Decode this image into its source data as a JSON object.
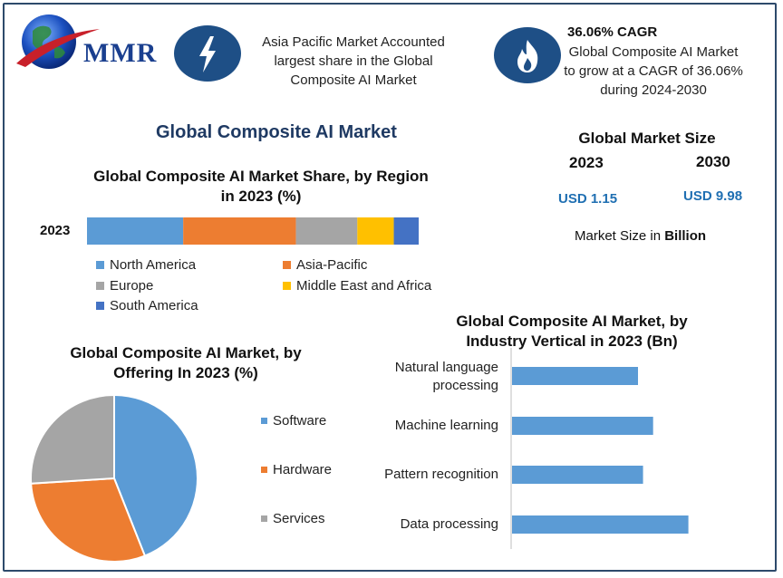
{
  "logo": {
    "text": "MMR"
  },
  "header": {
    "asia_text": "Asia Pacific Market Accounted largest share in the Global Composite AI Market",
    "cagr_title": "36.06% CAGR",
    "cagr_text": "Global Composite AI Market to grow at a CAGR of 36.06% during 2024-2030"
  },
  "main_title": "Global Composite AI Market",
  "market_size": {
    "title": "Global Market Size",
    "year_1": "2023",
    "year_2": "2030",
    "value_1": "USD 1.15",
    "value_2": "USD 9.98",
    "unit_prefix": "Market Size in ",
    "unit_bold": "Billion"
  },
  "colors": {
    "north_america": "#5b9bd5",
    "asia_pacific": "#ed7d31",
    "europe": "#a5a5a5",
    "middle_east_africa": "#ffc000",
    "south_america": "#4472c4",
    "industry_bar": "#5b9bd5"
  },
  "chart_data": [
    {
      "type": "bar",
      "orientation": "horizontal-stacked",
      "title": "Global Composite AI Market Share, by Region in 2023 (%)",
      "categories": [
        "2023"
      ],
      "series": [
        {
          "name": "North America",
          "values": [
            29
          ]
        },
        {
          "name": "Asia-Pacific",
          "values": [
            34
          ]
        },
        {
          "name": "Europe",
          "values": [
            18.5
          ]
        },
        {
          "name": "Middle East and Africa",
          "values": [
            11
          ]
        },
        {
          "name": "South America",
          "values": [
            7.5
          ]
        }
      ],
      "legend": [
        "North America",
        "Asia-Pacific",
        "Europe",
        "Middle East and Africa",
        "South America"
      ],
      "legend_position": "bottom"
    },
    {
      "type": "pie",
      "title": "Global Composite AI Market, by Offering In 2023 (%)",
      "categories": [
        "Software",
        "Hardware",
        "Services"
      ],
      "values": [
        44,
        30,
        26
      ],
      "legend_position": "right"
    },
    {
      "type": "bar",
      "orientation": "horizontal",
      "title": "Global Composite AI Market, by Industry Vertical in 2023 (Bn)",
      "categories": [
        "Natural language processing",
        "Machine learning",
        "Pattern recognition",
        "Data processing"
      ],
      "values": [
        0.25,
        0.28,
        0.26,
        0.35
      ],
      "xlim": [
        0,
        0.5
      ],
      "grid": false
    }
  ]
}
